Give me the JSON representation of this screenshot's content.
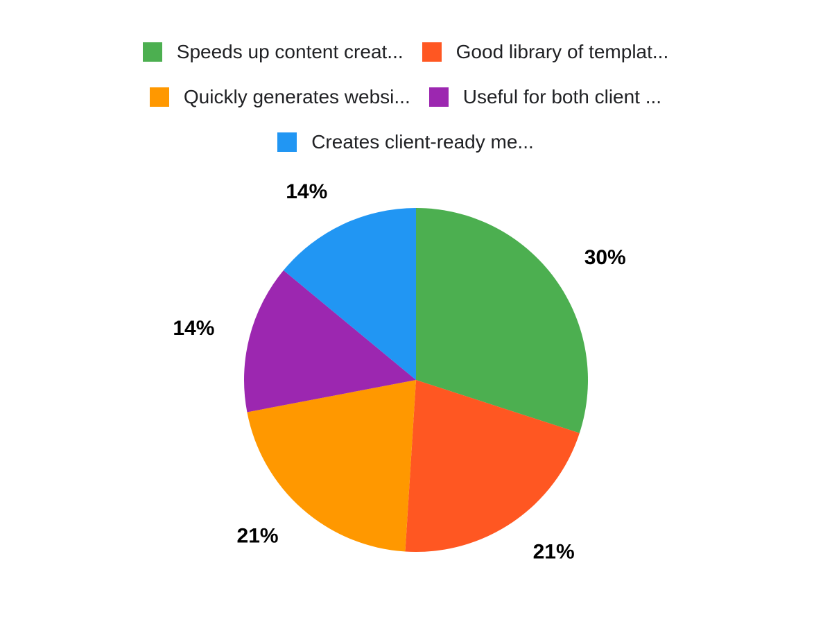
{
  "chart_data": {
    "type": "pie",
    "title": "",
    "categories": [
      "Speeds up content creat...",
      "Good library of templat...",
      "Quickly generates websi...",
      "Useful for both client ...",
      "Creates client-ready me..."
    ],
    "values": [
      30,
      21,
      21,
      14,
      14
    ],
    "percent_labels": [
      "30%",
      "21%",
      "21%",
      "14%",
      "14%"
    ],
    "colors": [
      "#4CAF50",
      "#FF5722",
      "#FF9800",
      "#9C27B0",
      "#2196F3"
    ],
    "start_angle_deg": 0,
    "direction": "clockwise",
    "legend_position": "top",
    "data_labels_position": "outside",
    "background": "#ffffff",
    "label_text_color": "#000000"
  },
  "legend": {
    "items": [
      {
        "label": "Speeds up content creat...",
        "color": "#4CAF50",
        "swatch_name": "legend-swatch-green"
      },
      {
        "label": "Good library of templat...",
        "color": "#FF5722",
        "swatch_name": "legend-swatch-red-orange"
      },
      {
        "label": "Quickly generates websi...",
        "color": "#FF9800",
        "swatch_name": "legend-swatch-orange"
      },
      {
        "label": "Useful for both client ...",
        "color": "#9C27B0",
        "swatch_name": "legend-swatch-purple"
      },
      {
        "label": "Creates client-ready me...",
        "color": "#2196F3",
        "swatch_name": "legend-swatch-blue"
      }
    ]
  }
}
